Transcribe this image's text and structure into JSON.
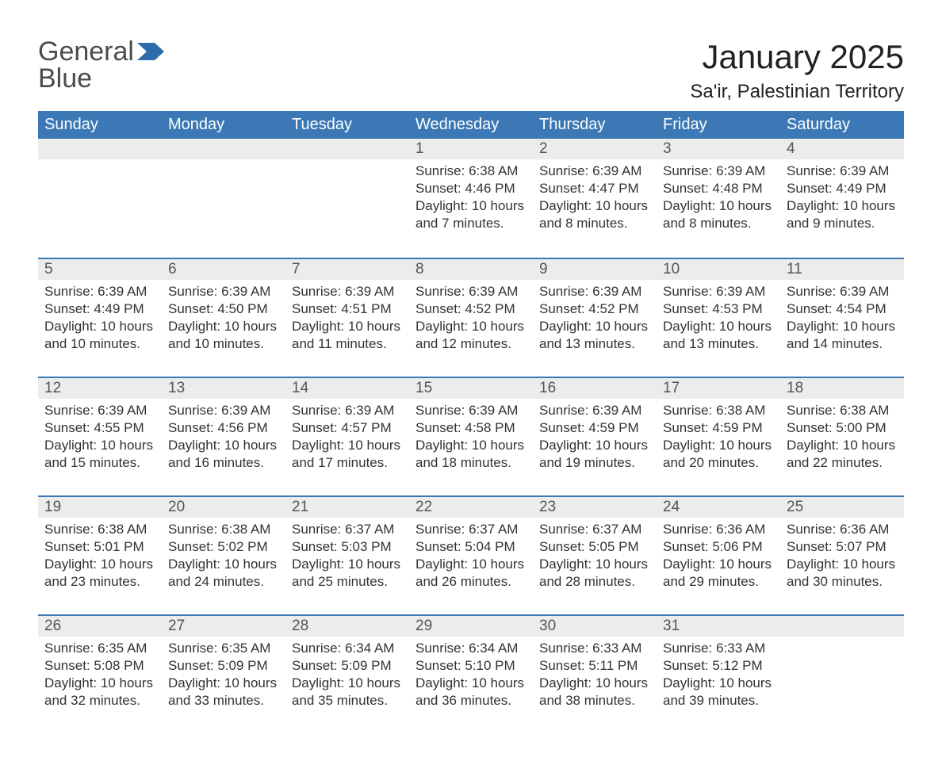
{
  "logo": {
    "word1": "General",
    "word2": "Blue",
    "flag_color": "#2c6ca8"
  },
  "title": "January 2025",
  "location": "Sa'ir, Palestinian Territory",
  "colors": {
    "header_bg": "#3b78b5",
    "header_text": "#ffffff",
    "daynum_bg": "#ececec",
    "row_divider": "#3b78b5",
    "body_text": "#333333",
    "page_bg": "#ffffff"
  },
  "fonts": {
    "title_pt": 42,
    "location_pt": 24,
    "header_pt": 20,
    "daynum_pt": 19,
    "body_pt": 17
  },
  "weekdays": [
    "Sunday",
    "Monday",
    "Tuesday",
    "Wednesday",
    "Thursday",
    "Friday",
    "Saturday"
  ],
  "start_day_index": 3,
  "days": [
    {
      "n": 1,
      "sunrise": "6:38 AM",
      "sunset": "4:46 PM",
      "daylight": "10 hours and 7 minutes."
    },
    {
      "n": 2,
      "sunrise": "6:39 AM",
      "sunset": "4:47 PM",
      "daylight": "10 hours and 8 minutes."
    },
    {
      "n": 3,
      "sunrise": "6:39 AM",
      "sunset": "4:48 PM",
      "daylight": "10 hours and 8 minutes."
    },
    {
      "n": 4,
      "sunrise": "6:39 AM",
      "sunset": "4:49 PM",
      "daylight": "10 hours and 9 minutes."
    },
    {
      "n": 5,
      "sunrise": "6:39 AM",
      "sunset": "4:49 PM",
      "daylight": "10 hours and 10 minutes."
    },
    {
      "n": 6,
      "sunrise": "6:39 AM",
      "sunset": "4:50 PM",
      "daylight": "10 hours and 10 minutes."
    },
    {
      "n": 7,
      "sunrise": "6:39 AM",
      "sunset": "4:51 PM",
      "daylight": "10 hours and 11 minutes."
    },
    {
      "n": 8,
      "sunrise": "6:39 AM",
      "sunset": "4:52 PM",
      "daylight": "10 hours and 12 minutes."
    },
    {
      "n": 9,
      "sunrise": "6:39 AM",
      "sunset": "4:52 PM",
      "daylight": "10 hours and 13 minutes."
    },
    {
      "n": 10,
      "sunrise": "6:39 AM",
      "sunset": "4:53 PM",
      "daylight": "10 hours and 13 minutes."
    },
    {
      "n": 11,
      "sunrise": "6:39 AM",
      "sunset": "4:54 PM",
      "daylight": "10 hours and 14 minutes."
    },
    {
      "n": 12,
      "sunrise": "6:39 AM",
      "sunset": "4:55 PM",
      "daylight": "10 hours and 15 minutes."
    },
    {
      "n": 13,
      "sunrise": "6:39 AM",
      "sunset": "4:56 PM",
      "daylight": "10 hours and 16 minutes."
    },
    {
      "n": 14,
      "sunrise": "6:39 AM",
      "sunset": "4:57 PM",
      "daylight": "10 hours and 17 minutes."
    },
    {
      "n": 15,
      "sunrise": "6:39 AM",
      "sunset": "4:58 PM",
      "daylight": "10 hours and 18 minutes."
    },
    {
      "n": 16,
      "sunrise": "6:39 AM",
      "sunset": "4:59 PM",
      "daylight": "10 hours and 19 minutes."
    },
    {
      "n": 17,
      "sunrise": "6:38 AM",
      "sunset": "4:59 PM",
      "daylight": "10 hours and 20 minutes."
    },
    {
      "n": 18,
      "sunrise": "6:38 AM",
      "sunset": "5:00 PM",
      "daylight": "10 hours and 22 minutes."
    },
    {
      "n": 19,
      "sunrise": "6:38 AM",
      "sunset": "5:01 PM",
      "daylight": "10 hours and 23 minutes."
    },
    {
      "n": 20,
      "sunrise": "6:38 AM",
      "sunset": "5:02 PM",
      "daylight": "10 hours and 24 minutes."
    },
    {
      "n": 21,
      "sunrise": "6:37 AM",
      "sunset": "5:03 PM",
      "daylight": "10 hours and 25 minutes."
    },
    {
      "n": 22,
      "sunrise": "6:37 AM",
      "sunset": "5:04 PM",
      "daylight": "10 hours and 26 minutes."
    },
    {
      "n": 23,
      "sunrise": "6:37 AM",
      "sunset": "5:05 PM",
      "daylight": "10 hours and 28 minutes."
    },
    {
      "n": 24,
      "sunrise": "6:36 AM",
      "sunset": "5:06 PM",
      "daylight": "10 hours and 29 minutes."
    },
    {
      "n": 25,
      "sunrise": "6:36 AM",
      "sunset": "5:07 PM",
      "daylight": "10 hours and 30 minutes."
    },
    {
      "n": 26,
      "sunrise": "6:35 AM",
      "sunset": "5:08 PM",
      "daylight": "10 hours and 32 minutes."
    },
    {
      "n": 27,
      "sunrise": "6:35 AM",
      "sunset": "5:09 PM",
      "daylight": "10 hours and 33 minutes."
    },
    {
      "n": 28,
      "sunrise": "6:34 AM",
      "sunset": "5:09 PM",
      "daylight": "10 hours and 35 minutes."
    },
    {
      "n": 29,
      "sunrise": "6:34 AM",
      "sunset": "5:10 PM",
      "daylight": "10 hours and 36 minutes."
    },
    {
      "n": 30,
      "sunrise": "6:33 AM",
      "sunset": "5:11 PM",
      "daylight": "10 hours and 38 minutes."
    },
    {
      "n": 31,
      "sunrise": "6:33 AM",
      "sunset": "5:12 PM",
      "daylight": "10 hours and 39 minutes."
    }
  ],
  "labels": {
    "sunrise": "Sunrise: ",
    "sunset": "Sunset: ",
    "daylight": "Daylight: "
  }
}
